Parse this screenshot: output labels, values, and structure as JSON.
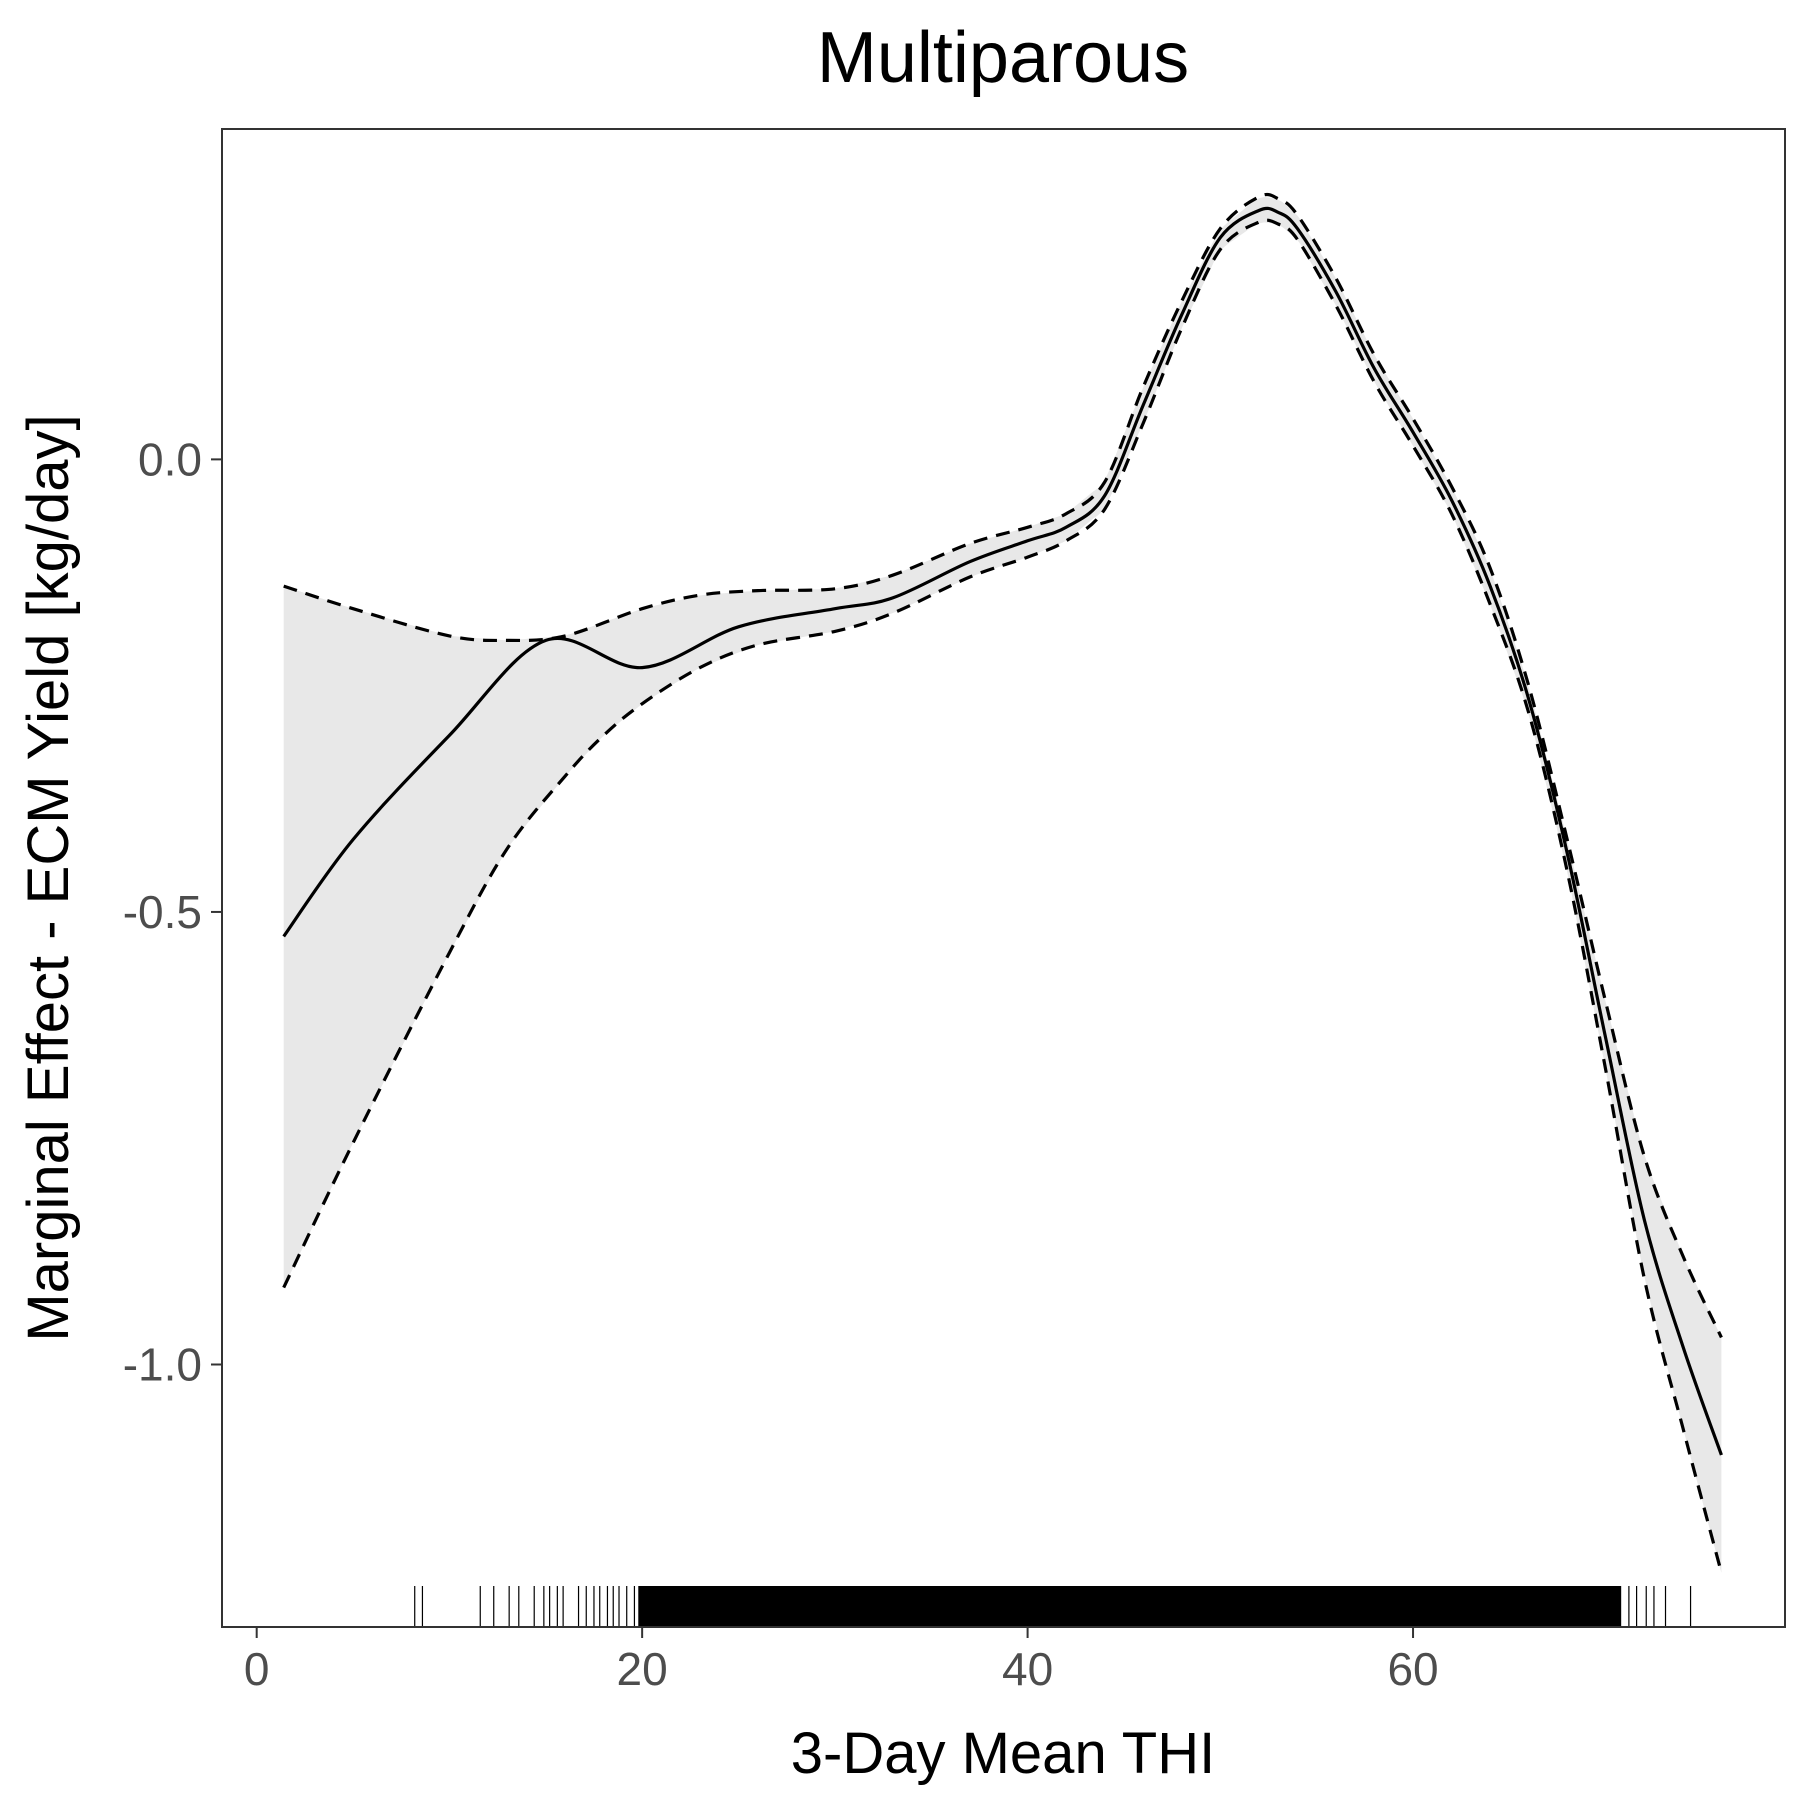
{
  "chart_data": {
    "type": "line",
    "title": "Multiparous",
    "xlabel": "3-Day Mean THI",
    "ylabel": "Marginal Effect - ECM Yield [kg/day]",
    "xlim": [
      -1.8,
      79.3
    ],
    "ylim": [
      -1.29,
      0.365
    ],
    "x_ticks": [
      0,
      20,
      40,
      60
    ],
    "x_tick_labels": [
      "0",
      "20",
      "40",
      "60"
    ],
    "y_ticks": [
      -1.0,
      -0.5,
      0.0
    ],
    "y_tick_labels": [
      "-1.0",
      "-0.5",
      "0.0"
    ],
    "grid": false,
    "legend": "none",
    "colors": {
      "line": "#000000",
      "ribbon": "#e8e8e8",
      "frame": "#333333",
      "tick_text": "#4d4d4d"
    },
    "series": [
      {
        "role": "estimate",
        "style": "solid",
        "x": [
          1.4,
          5,
          10,
          15,
          20,
          25,
          30,
          33,
          37,
          40,
          42,
          44,
          46,
          48,
          50,
          52,
          53,
          54,
          56,
          58,
          60,
          62,
          64,
          66,
          68,
          70,
          72,
          74,
          76
        ],
        "y": [
          -0.527,
          -0.42,
          -0.305,
          -0.2,
          -0.23,
          -0.185,
          -0.165,
          -0.153,
          -0.113,
          -0.09,
          -0.075,
          -0.04,
          0.06,
          0.16,
          0.245,
          0.275,
          0.273,
          0.255,
          0.185,
          0.1,
          0.03,
          -0.045,
          -0.14,
          -0.265,
          -0.435,
          -0.64,
          -0.84,
          -0.98,
          -1.1
        ]
      },
      {
        "role": "upper",
        "style": "dashed",
        "x": [
          1.4,
          5,
          10,
          13,
          16,
          20,
          23,
          26,
          30,
          33,
          37,
          40,
          42,
          44,
          46,
          48,
          50,
          52,
          53,
          54,
          56,
          58,
          60,
          62,
          64,
          66,
          68,
          70,
          72,
          74,
          76
        ],
        "y": [
          -0.14,
          -0.165,
          -0.195,
          -0.2,
          -0.195,
          -0.165,
          -0.15,
          -0.145,
          -0.143,
          -0.128,
          -0.093,
          -0.075,
          -0.06,
          -0.025,
          0.08,
          0.175,
          0.255,
          0.29,
          0.288,
          0.27,
          0.2,
          0.115,
          0.045,
          -0.03,
          -0.12,
          -0.25,
          -0.42,
          -0.6,
          -0.77,
          -0.88,
          -0.97
        ]
      },
      {
        "role": "lower",
        "style": "dashed",
        "x": [
          1.4,
          5,
          10,
          13,
          16,
          18,
          20,
          23,
          26,
          30,
          33,
          37,
          40,
          42,
          44,
          46,
          48,
          50,
          52,
          53,
          54,
          56,
          58,
          60,
          62,
          64,
          66,
          68,
          70,
          72,
          74,
          76
        ],
        "y": [
          -0.915,
          -0.755,
          -0.545,
          -0.43,
          -0.35,
          -0.305,
          -0.27,
          -0.23,
          -0.205,
          -0.19,
          -0.17,
          -0.13,
          -0.108,
          -0.09,
          -0.055,
          0.04,
          0.145,
          0.232,
          0.262,
          0.26,
          0.243,
          0.17,
          0.085,
          0.015,
          -0.06,
          -0.16,
          -0.28,
          -0.455,
          -0.675,
          -0.905,
          -1.07,
          -1.23
        ]
      }
    ],
    "rug": {
      "sparse_x": [
        8.2,
        8.6,
        11.6,
        12.3,
        13.1,
        13.6,
        14.4,
        14.9,
        15.2,
        15.6,
        15.9,
        16.7,
        17.1,
        17.5,
        17.8,
        18.2,
        18.5,
        18.8,
        19.2,
        19.6,
        71.2,
        71.6,
        72.1,
        72.5,
        73.1,
        74.4
      ],
      "dense_range": [
        19.8,
        70.8
      ]
    }
  }
}
